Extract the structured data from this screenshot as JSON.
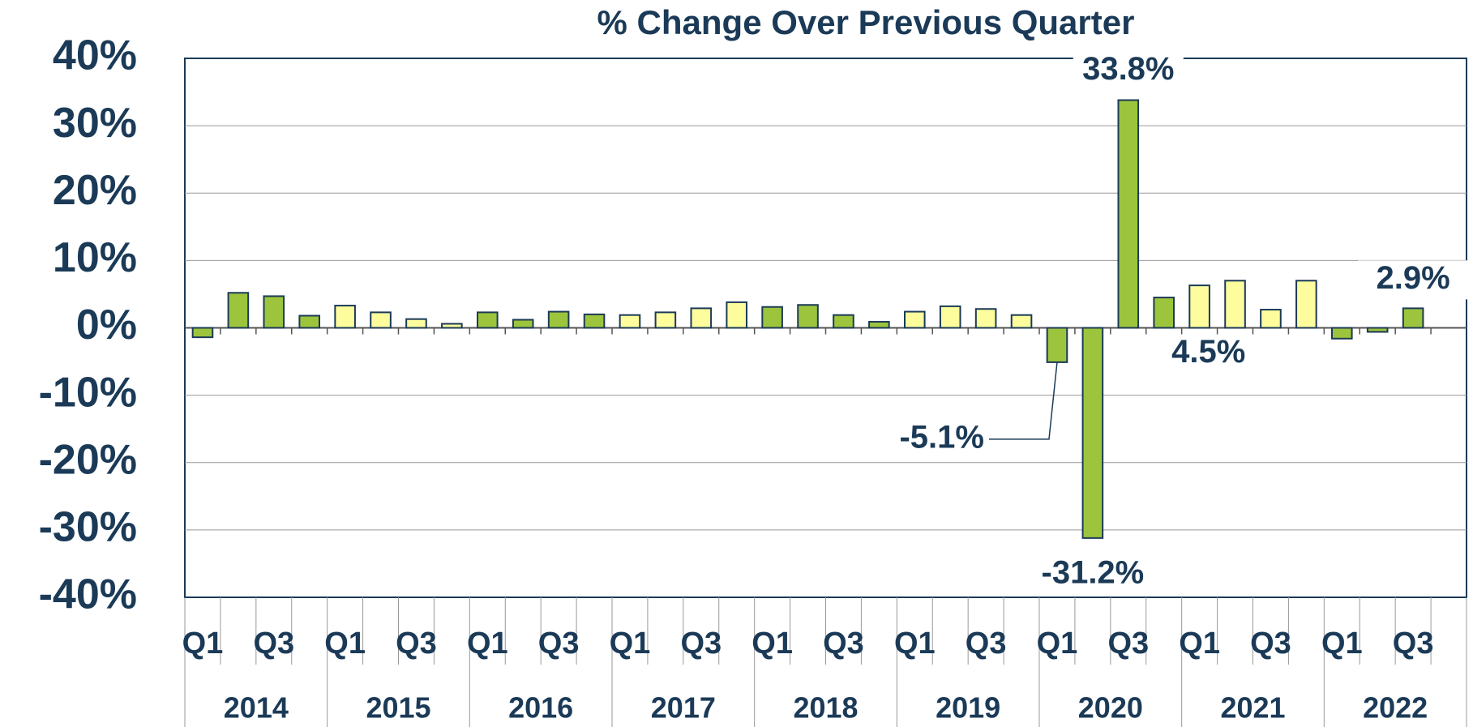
{
  "chart_data": {
    "type": "bar",
    "title": "% Change Over Previous Quarter",
    "categories": [
      "Q1",
      null,
      "Q3",
      null,
      "Q1",
      null,
      "Q3",
      null,
      "Q1",
      null,
      "Q3",
      null,
      "Q1",
      null,
      "Q3",
      null,
      "Q1",
      null,
      "Q3",
      null,
      "Q1",
      null,
      "Q3",
      null,
      "Q1",
      null,
      "Q3",
      null,
      "Q1",
      null,
      "Q3",
      null,
      "Q1",
      null,
      "Q3",
      null
    ],
    "years": [
      "2014",
      "2015",
      "2016",
      "2017",
      "2018",
      "2019",
      "2020",
      "2021",
      "2022"
    ],
    "values": [
      -1.4,
      5.2,
      4.7,
      1.8,
      3.3,
      2.3,
      1.3,
      0.6,
      2.3,
      1.2,
      2.4,
      2.0,
      1.9,
      2.3,
      2.9,
      3.8,
      3.1,
      3.4,
      1.9,
      0.9,
      2.4,
      3.2,
      2.8,
      1.9,
      -5.1,
      -31.2,
      33.8,
      4.5,
      6.3,
      7.0,
      2.7,
      7.0,
      -1.6,
      -0.6,
      2.9,
      null
    ],
    "value_labels": [
      null,
      null,
      null,
      null,
      null,
      null,
      null,
      null,
      null,
      null,
      null,
      null,
      null,
      null,
      null,
      null,
      null,
      null,
      null,
      null,
      null,
      null,
      null,
      null,
      "-5.1%",
      "-31.2%",
      "33.8%",
      "4.5%",
      null,
      null,
      null,
      null,
      null,
      null,
      "2.9%",
      null
    ],
    "year_colors": [
      "#9dc43d",
      "#fdfd9e",
      "#9dc43d",
      "#fdfd9e",
      "#9dc43d",
      "#fdfd9e",
      "#9dc43d",
      "#fdfd9e",
      "#9dc43d"
    ],
    "ylim": [
      -40,
      40
    ],
    "yticks": [
      {
        "value": -40,
        "label": "-40%"
      },
      {
        "value": -30,
        "label": "-30%"
      },
      {
        "value": -20,
        "label": "-20%"
      },
      {
        "value": -10,
        "label": "-10%"
      },
      {
        "value": 0,
        "label": "0%"
      },
      {
        "value": 10,
        "label": "10%"
      },
      {
        "value": 20,
        "label": "20%"
      },
      {
        "value": 30,
        "label": "30%"
      },
      {
        "value": 40,
        "label": "40%"
      }
    ],
    "grid": true
  }
}
